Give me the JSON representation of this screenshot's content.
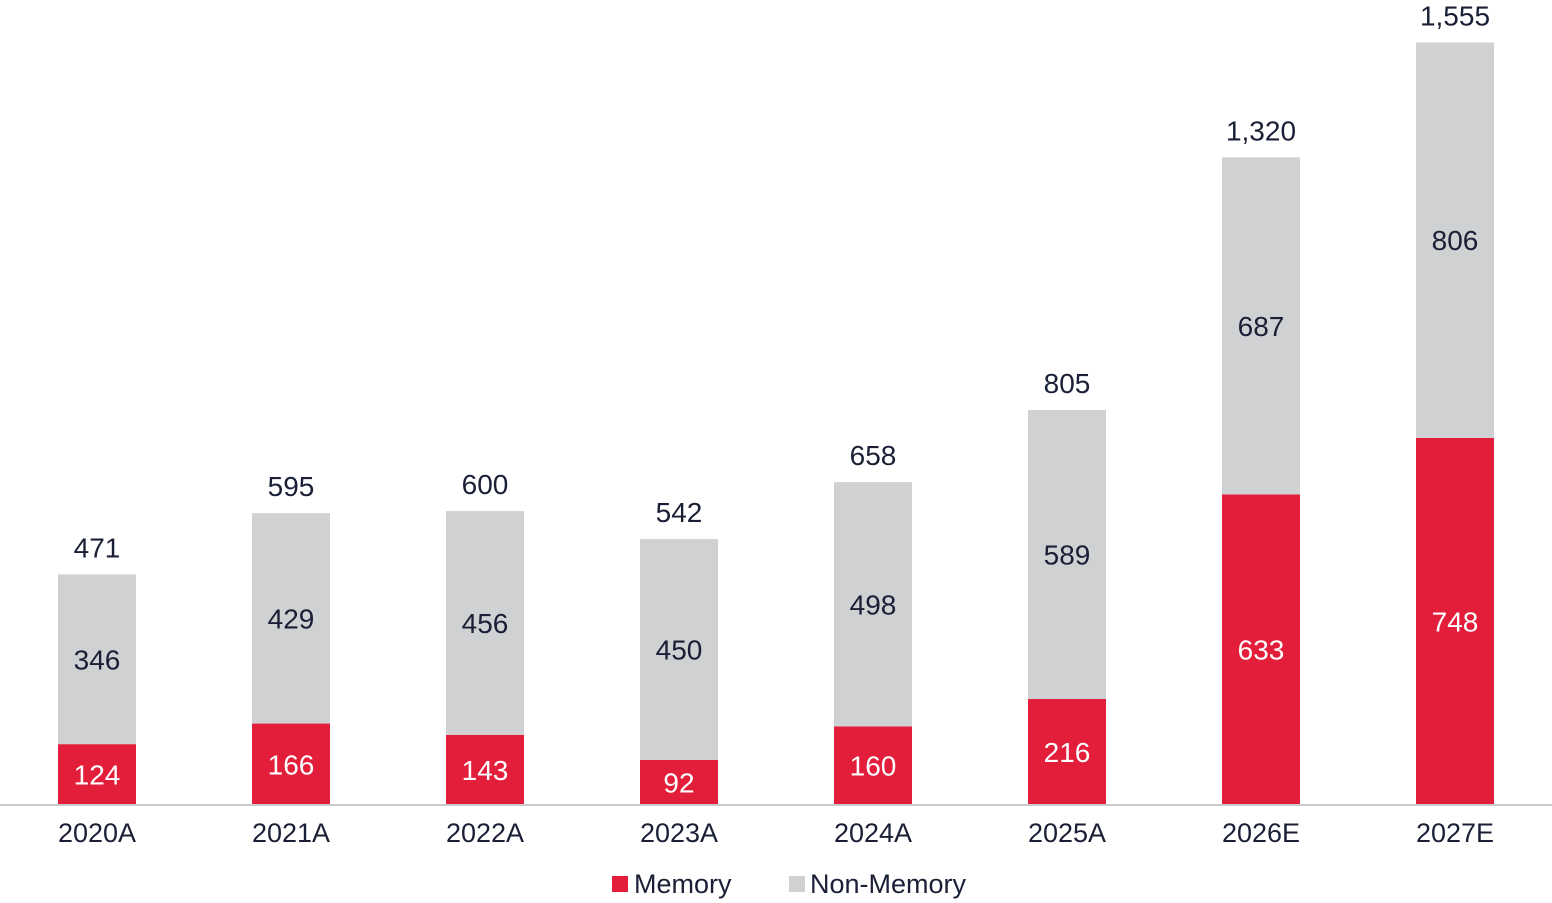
{
  "chart_data": {
    "type": "bar",
    "stacked": true,
    "categories": [
      "2020A",
      "2021A",
      "2022A",
      "2023A",
      "2024A",
      "2025A",
      "2026E",
      "2027E"
    ],
    "series": [
      {
        "name": "Memory",
        "values": [
          124,
          166,
          143,
          92,
          160,
          216,
          633,
          748
        ],
        "color": "#e31e3b"
      },
      {
        "name": "Non-Memory",
        "values": [
          346,
          429,
          456,
          450,
          498,
          589,
          687,
          806
        ],
        "color": "#d0d1d3"
      }
    ],
    "totals": [
      "471",
      "595",
      "600",
      "542",
      "658",
      "805",
      "1,320",
      "1,555"
    ],
    "ylim": [
      0,
      1555
    ],
    "grid": false,
    "legend": "bottom-center",
    "label_colors": {
      "dark": "#1a1f36",
      "light": "#ffffff"
    }
  }
}
